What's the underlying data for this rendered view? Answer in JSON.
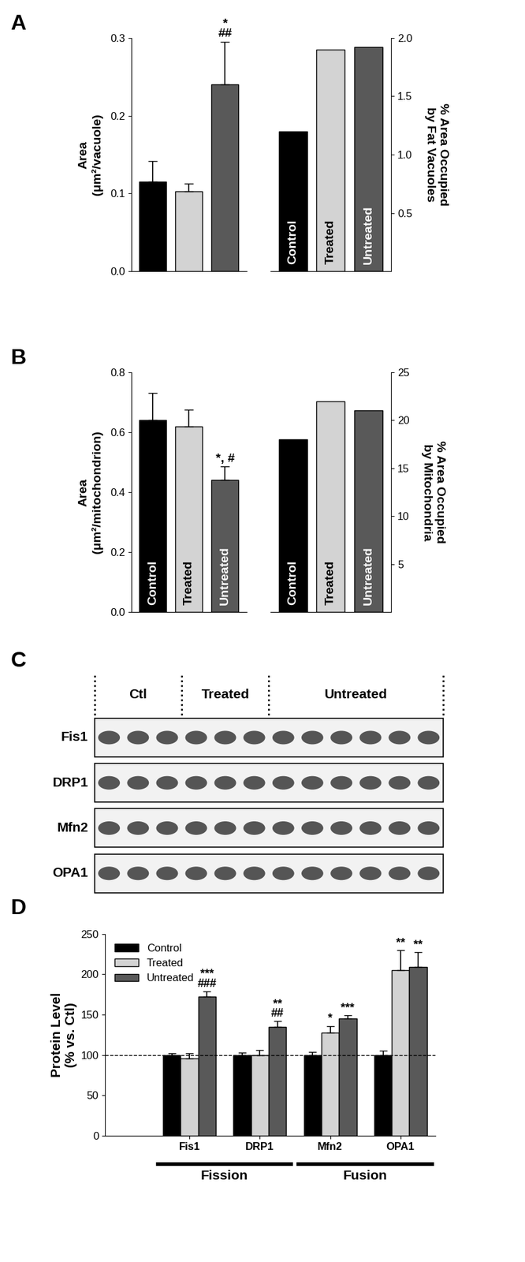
{
  "chart_data": [
    {
      "panel_label": "A",
      "type": "bar",
      "categories": [
        null,
        null,
        null
      ],
      "values": [
        0.115,
        0.103,
        0.24
      ],
      "errors": [
        0.027,
        0.01,
        0.055
      ],
      "colors": [
        "#000000",
        "#d3d3d3",
        "#595959"
      ],
      "y_label": "Area\n(μm²/vacuole)",
      "ylim": [
        0.0,
        0.3
      ],
      "yticks": [
        0.0,
        0.1,
        0.2,
        0.3
      ],
      "tick_labels": "y",
      "annotations": [
        {
          "category": 2,
          "text": "*\n##"
        }
      ]
    },
    {
      "type": "bar",
      "categories": [
        "Control",
        "Treated",
        "Untreated"
      ],
      "values": [
        1.2,
        1.9,
        1.92
      ],
      "colors": [
        "#000000",
        "#d3d3d3",
        "#595959"
      ],
      "y2_label": "% Area Occupied\nby Fat Vacuoles",
      "y2lim": [
        0.0,
        2.0
      ],
      "y2ticks": [
        0.5,
        1.0,
        1.5,
        2.0
      ],
      "tick_labels": "y"
    },
    {
      "panel_label": "B",
      "type": "bar",
      "categories": [
        "Control",
        "Treated",
        "Untreated"
      ],
      "values": [
        0.64,
        0.62,
        0.44
      ],
      "errors": [
        0.09,
        0.055,
        0.045
      ],
      "colors": [
        "#000000",
        "#d3d3d3",
        "#595959"
      ],
      "y_label": "Area\n(μm²/mitochondrion)",
      "ylim": [
        0.0,
        0.8
      ],
      "yticks": [
        0.0,
        0.2,
        0.4,
        0.6,
        0.8
      ],
      "tick_labels": "y",
      "annotations": [
        {
          "category": 2,
          "text": "*, #"
        }
      ]
    },
    {
      "type": "bar",
      "categories": [
        "Control",
        "Treated",
        "Untreated"
      ],
      "values": [
        18,
        22,
        21
      ],
      "colors": [
        "#000000",
        "#d3d3d3",
        "#595959"
      ],
      "y2_label": "% Area Occupied\nby Mitochondria",
      "y2lim": [
        0,
        25
      ],
      "y2ticks": [
        5,
        10,
        15,
        20,
        25
      ],
      "tick_labels": "y"
    },
    {
      "panel_label": "D",
      "type": "bar",
      "categories": [
        "Fis1",
        "DRP1",
        "Mfn2",
        "OPA1"
      ],
      "series": [
        {
          "name": "Control",
          "color": "#000000",
          "values": [
            100,
            100,
            100,
            100
          ],
          "errors": [
            2,
            3,
            4,
            5
          ],
          "annotations": [
            null,
            null,
            null,
            null
          ]
        },
        {
          "name": "Treated",
          "color": "#d3d3d3",
          "values": [
            96,
            100,
            128,
            205
          ],
          "errors": [
            6,
            6,
            8,
            25
          ],
          "annotations": [
            null,
            null,
            "*",
            "**"
          ]
        },
        {
          "name": "Untreated",
          "color": "#595959",
          "values": [
            172,
            135,
            145,
            209
          ],
          "errors": [
            7,
            7,
            4,
            18
          ],
          "annotations": [
            "***\n###",
            "**\n##",
            "***",
            "**"
          ]
        }
      ],
      "y_label": "Protein Level\n(% vs. Ctl)",
      "ylim": [
        0,
        250
      ],
      "yticks": [
        0,
        50,
        100,
        150,
        200,
        250
      ],
      "reference_line": 100,
      "legend": "upper left",
      "groups": [
        {
          "name": "Fission",
          "categories": [
            "Fis1",
            "DRP1"
          ]
        },
        {
          "name": "Fusion",
          "categories": [
            "Mfn2",
            "OPA1"
          ]
        }
      ]
    }
  ],
  "blot": {
    "panel_label": "C",
    "groups": [
      {
        "name": "Ctl",
        "lanes": 3
      },
      {
        "name": "Treated",
        "lanes": 3
      },
      {
        "name": "Untreated",
        "lanes": 6
      }
    ],
    "proteins": [
      "Fis1",
      "DRP1",
      "Mfn2",
      "OPA1"
    ]
  }
}
